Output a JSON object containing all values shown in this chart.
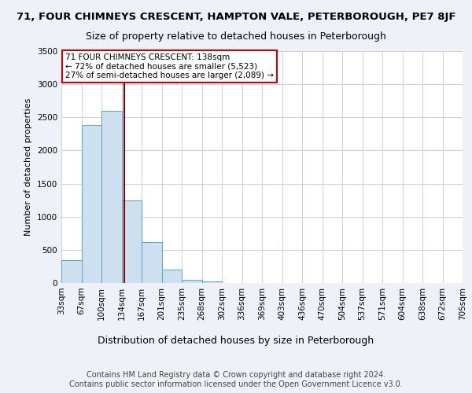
{
  "title": "71, FOUR CHIMNEYS CRESCENT, HAMPTON VALE, PETERBOROUGH, PE7 8JF",
  "subtitle": "Size of property relative to detached houses in Peterborough",
  "xlabel": "Distribution of detached houses by size in Peterborough",
  "ylabel": "Number of detached properties",
  "bin_labels": [
    "33sqm",
    "67sqm",
    "100sqm",
    "134sqm",
    "167sqm",
    "201sqm",
    "235sqm",
    "268sqm",
    "302sqm",
    "336sqm",
    "369sqm",
    "403sqm",
    "436sqm",
    "470sqm",
    "504sqm",
    "537sqm",
    "571sqm",
    "604sqm",
    "638sqm",
    "672sqm",
    "705sqm"
  ],
  "bar_heights": [
    350,
    2390,
    2600,
    1250,
    620,
    200,
    50,
    25,
    5,
    3,
    2,
    1,
    0,
    0,
    0,
    0,
    0,
    0,
    0,
    0
  ],
  "bar_color": "#cce0f0",
  "bar_edge_color": "#5ba3cc",
  "vline_bin_index": 3,
  "vline_color": "#8b0000",
  "ylim": [
    0,
    3500
  ],
  "yticks": [
    0,
    500,
    1000,
    1500,
    2000,
    2500,
    3000,
    3500
  ],
  "annotation_text": "71 FOUR CHIMNEYS CRESCENT: 138sqm\n← 72% of detached houses are smaller (5,523)\n27% of semi-detached houses are larger (2,089) →",
  "annotation_box_facecolor": "#ffffff",
  "annotation_box_edgecolor": "#cc0000",
  "footnote": "Contains HM Land Registry data © Crown copyright and database right 2024.\nContains public sector information licensed under the Open Government Licence v3.0.",
  "title_fontsize": 9.5,
  "subtitle_fontsize": 9,
  "xlabel_fontsize": 9,
  "ylabel_fontsize": 8,
  "tick_fontsize": 7.5,
  "annotation_fontsize": 7.5,
  "footnote_fontsize": 7,
  "background_color": "#eef2f8",
  "plot_background_color": "#ffffff",
  "grid_color": "#d0d0d0"
}
